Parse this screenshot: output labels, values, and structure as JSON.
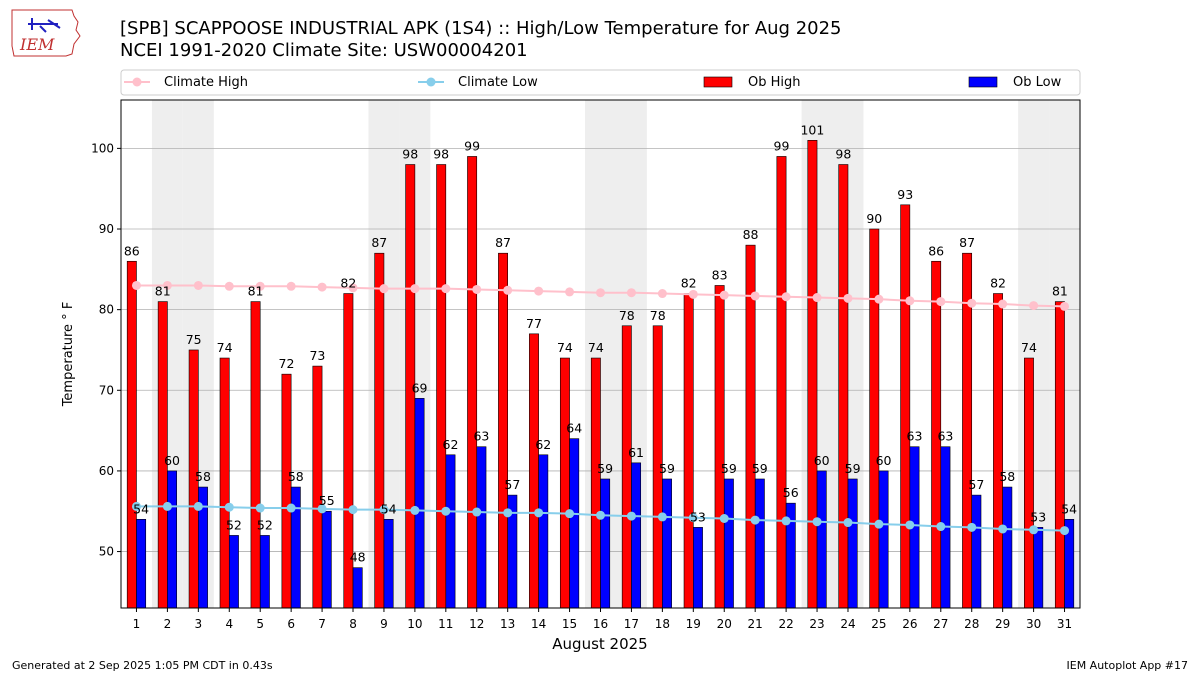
{
  "header": {
    "title_line1": "[SPB] SCAPPOOSE INDUSTRIAL APK (1S4) :: High/Low Temperature for Aug 2025",
    "title_line2": "NCEI 1991-2020 Climate Site: USW00004201",
    "logo_text": "IEM"
  },
  "footer": {
    "left": "Generated at 2 Sep 2025 1:05 PM CDT in 0.43s",
    "right": "IEM Autoplot App #17"
  },
  "colors": {
    "ob_high": "#ff0000",
    "ob_low": "#0000ff",
    "climate_high": "#ffc0cb",
    "climate_low": "#87ceeb",
    "weekend_band": "#eeeeee",
    "grid": "#b0b0b0"
  },
  "chart_data": {
    "type": "bar",
    "title": "[SPB] SCAPPOOSE INDUSTRIAL APK (1S4) :: High/Low Temperature for Aug 2025",
    "subtitle": "NCEI 1991-2020 Climate Site: USW00004201",
    "xlabel": "August 2025",
    "ylabel": "Temperature ° F",
    "categories": [
      "1",
      "2",
      "3",
      "4",
      "5",
      "6",
      "7",
      "8",
      "9",
      "10",
      "11",
      "12",
      "13",
      "14",
      "15",
      "16",
      "17",
      "18",
      "19",
      "20",
      "21",
      "22",
      "23",
      "24",
      "25",
      "26",
      "27",
      "28",
      "29",
      "30",
      "31"
    ],
    "ylim": [
      43,
      106
    ],
    "yticks": [
      50,
      60,
      70,
      80,
      90,
      100
    ],
    "grid": "horizontal",
    "legend_position": "top",
    "shaded_days": [
      2,
      3,
      9,
      10,
      16,
      17,
      23,
      24,
      30,
      31
    ],
    "series": [
      {
        "name": "Ob High",
        "kind": "bar",
        "color": "#ff0000",
        "values": [
          86,
          81,
          75,
          74,
          81,
          72,
          73,
          82,
          87,
          98,
          98,
          99,
          87,
          77,
          74,
          74,
          78,
          78,
          82,
          83,
          88,
          99,
          101,
          98,
          90,
          93,
          86,
          87,
          82,
          74,
          81
        ]
      },
      {
        "name": "Ob Low",
        "kind": "bar",
        "color": "#0000ff",
        "values": [
          54,
          60,
          58,
          52,
          52,
          58,
          55,
          48,
          54,
          69,
          62,
          63,
          57,
          62,
          64,
          59,
          61,
          59,
          53,
          59,
          59,
          56,
          60,
          59,
          60,
          63,
          63,
          57,
          58,
          53,
          54
        ]
      },
      {
        "name": "Climate High",
        "kind": "line",
        "color": "#ffc0cb",
        "values": [
          83.0,
          83.0,
          83.0,
          82.9,
          82.9,
          82.9,
          82.8,
          82.7,
          82.6,
          82.6,
          82.6,
          82.5,
          82.4,
          82.3,
          82.2,
          82.1,
          82.1,
          82.0,
          81.9,
          81.8,
          81.7,
          81.6,
          81.5,
          81.4,
          81.3,
          81.1,
          81.0,
          80.8,
          80.7,
          80.5,
          80.4
        ]
      },
      {
        "name": "Climate Low",
        "kind": "line",
        "color": "#87ceeb",
        "values": [
          55.6,
          55.6,
          55.6,
          55.5,
          55.4,
          55.4,
          55.3,
          55.2,
          55.2,
          55.1,
          55.0,
          54.9,
          54.8,
          54.8,
          54.7,
          54.5,
          54.4,
          54.3,
          54.2,
          54.1,
          53.9,
          53.8,
          53.7,
          53.6,
          53.4,
          53.3,
          53.1,
          53.0,
          52.8,
          52.7,
          52.6
        ]
      }
    ]
  }
}
